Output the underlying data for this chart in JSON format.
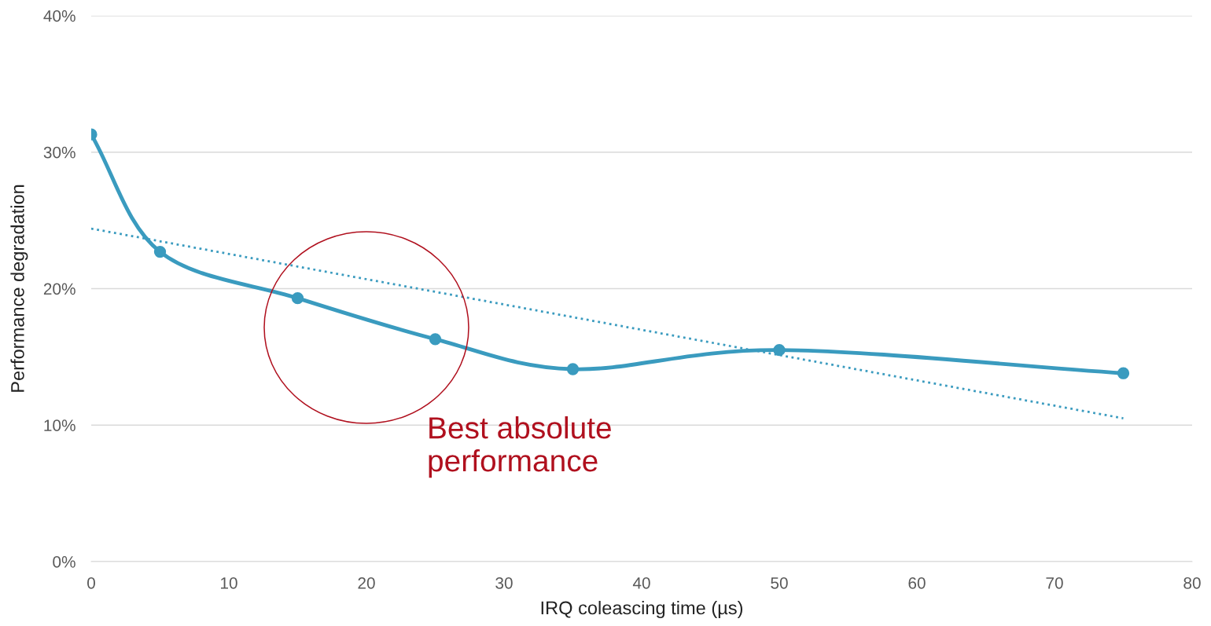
{
  "chart_data": {
    "type": "line",
    "xlabel": "IRQ coleascing time (µs)",
    "ylabel": "Performance degradation",
    "xlim": [
      0,
      80
    ],
    "xticks": [
      0,
      10,
      20,
      30,
      40,
      50,
      60,
      70,
      80
    ],
    "ylim": [
      0,
      40
    ],
    "yticks": [
      {
        "value": 0,
        "label": "0%"
      },
      {
        "value": 10,
        "label": "10%"
      },
      {
        "value": 20,
        "label": "20%"
      },
      {
        "value": 30,
        "label": "30%"
      },
      {
        "value": 40,
        "label": "40%"
      }
    ],
    "grid": "y",
    "legend": false,
    "series": [
      {
        "color": "#3a9bbf",
        "marker": "circle",
        "line_style": "solid",
        "x": [
          0,
          5,
          15,
          25,
          35,
          50,
          75
        ],
        "values": [
          31.3,
          22.7,
          19.3,
          16.3,
          14.1,
          15.5,
          13.8
        ]
      },
      {
        "type": "line",
        "color": "#3a9bbf",
        "marker": "none",
        "line_style": "dotted",
        "x": [
          0,
          75
        ],
        "values": [
          24.4,
          10.5
        ]
      }
    ],
    "annotations": [
      "Best absolute performance"
    ]
  }
}
